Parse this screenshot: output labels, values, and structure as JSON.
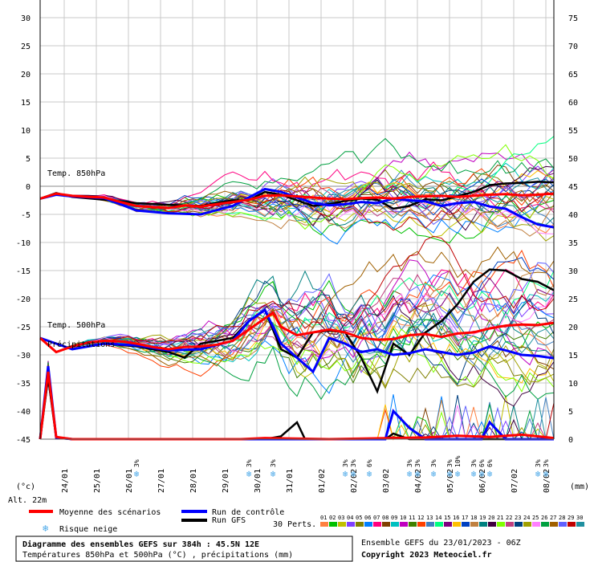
{
  "chart_data": {
    "type": "line",
    "left_axis": {
      "unit_label": "(°c)",
      "ticks": [
        30,
        25,
        20,
        15,
        10,
        5,
        0,
        -5,
        -10,
        -15,
        -20,
        -25,
        -30,
        -35,
        -40,
        -45
      ],
      "range": [
        -45,
        30
      ]
    },
    "right_axis": {
      "unit_label": "(mm)",
      "ticks": [
        75,
        70,
        65,
        60,
        55,
        50,
        45,
        40,
        35,
        30,
        25,
        20,
        15,
        10,
        5,
        0
      ],
      "range": [
        0,
        75
      ]
    },
    "x_ticks": [
      "24/01",
      "25/01",
      "26/01",
      "27/01",
      "28/01",
      "29/01",
      "30/01",
      "31/01",
      "01/02",
      "02/02",
      "03/02",
      "04/02",
      "05/02",
      "06/02",
      "07/02",
      "08/02"
    ],
    "x_hours": [
      18,
      42,
      66,
      90,
      114,
      138,
      162,
      186,
      210,
      234,
      258,
      282,
      306,
      330,
      354,
      378
    ],
    "x_range_hours": [
      0,
      384
    ],
    "grid": true,
    "altitude_label": "Alt. 22m",
    "annotations": [
      "Temp. 850hPa",
      "Temp. 500hPa",
      "Précipitations"
    ],
    "snow_risk": [
      {
        "h": 72,
        "pct": "3%"
      },
      {
        "h": 156,
        "pct": "3%"
      },
      {
        "h": 174,
        "pct": "3%"
      },
      {
        "h": 228,
        "pct": "3%"
      },
      {
        "h": 234,
        "pct": "3%"
      },
      {
        "h": 246,
        "pct": "6%"
      },
      {
        "h": 276,
        "pct": "3%"
      },
      {
        "h": 282,
        "pct": "3%"
      },
      {
        "h": 294,
        "pct": "3%"
      },
      {
        "h": 306,
        "pct": "3%"
      },
      {
        "h": 312,
        "pct": "10%"
      },
      {
        "h": 324,
        "pct": "3%"
      },
      {
        "h": 330,
        "pct": "6%"
      },
      {
        "h": 336,
        "pct": "6%"
      },
      {
        "h": 372,
        "pct": "3%"
      },
      {
        "h": 378,
        "pct": "3%"
      }
    ],
    "series": [
      {
        "name": "Moyenne des scénarios",
        "color": "#ff0000",
        "t850": [
          [
            0,
            -2.2
          ],
          [
            12,
            -1.3
          ],
          [
            24,
            -1.7
          ],
          [
            36,
            -1.9
          ],
          [
            48,
            -2.0
          ],
          [
            60,
            -2.8
          ],
          [
            72,
            -3.5
          ],
          [
            84,
            -3.7
          ],
          [
            96,
            -3.9
          ],
          [
            108,
            -3.4
          ],
          [
            120,
            -3.6
          ],
          [
            132,
            -3.2
          ],
          [
            144,
            -2.8
          ],
          [
            156,
            -2.4
          ],
          [
            168,
            -1.7
          ],
          [
            180,
            -1.6
          ],
          [
            192,
            -1.8
          ],
          [
            204,
            -2.0
          ],
          [
            216,
            -2.2
          ],
          [
            228,
            -2.3
          ],
          [
            240,
            -2.1
          ],
          [
            252,
            -2.0
          ],
          [
            264,
            -2.2
          ],
          [
            276,
            -1.9
          ],
          [
            288,
            -1.8
          ],
          [
            300,
            -1.7
          ],
          [
            312,
            -1.9
          ],
          [
            324,
            -1.7
          ],
          [
            336,
            -1.5
          ],
          [
            348,
            -1.4
          ],
          [
            360,
            -1.6
          ],
          [
            372,
            -1.5
          ],
          [
            384,
            -1.3
          ]
        ],
        "t500": [
          [
            0,
            -27
          ],
          [
            12,
            -29.5
          ],
          [
            24,
            -28.5
          ],
          [
            36,
            -27.8
          ],
          [
            48,
            -27.5
          ],
          [
            60,
            -27.6
          ],
          [
            72,
            -28
          ],
          [
            84,
            -28.6
          ],
          [
            96,
            -29
          ],
          [
            108,
            -28.6
          ],
          [
            120,
            -28.5
          ],
          [
            132,
            -28.2
          ],
          [
            144,
            -27.5
          ],
          [
            156,
            -25.5
          ],
          [
            168,
            -23.5
          ],
          [
            174,
            -22.5
          ],
          [
            180,
            -25
          ],
          [
            192,
            -26.5
          ],
          [
            204,
            -26
          ],
          [
            216,
            -25.5
          ],
          [
            228,
            -26
          ],
          [
            240,
            -27
          ],
          [
            252,
            -27.3
          ],
          [
            264,
            -27.2
          ],
          [
            276,
            -26.5
          ],
          [
            288,
            -26.3
          ],
          [
            300,
            -26.8
          ],
          [
            312,
            -26.2
          ],
          [
            324,
            -26
          ],
          [
            336,
            -25.3
          ],
          [
            348,
            -24.8
          ],
          [
            360,
            -24.6
          ],
          [
            372,
            -24.7
          ],
          [
            384,
            -24.3
          ]
        ],
        "precip": [
          [
            0,
            0
          ],
          [
            6,
            12
          ],
          [
            12,
            0.4
          ],
          [
            24,
            0
          ],
          [
            96,
            0
          ],
          [
            150,
            0
          ],
          [
            168,
            0.2
          ],
          [
            216,
            0
          ],
          [
            288,
            0.3
          ],
          [
            312,
            0.6
          ],
          [
            336,
            0.4
          ],
          [
            360,
            0.8
          ],
          [
            384,
            0.2
          ]
        ]
      },
      {
        "name": "Run de contrôle",
        "color": "#0000ff",
        "t850": [
          [
            0,
            -2.2
          ],
          [
            12,
            -1.5
          ],
          [
            24,
            -1.8
          ],
          [
            48,
            -2.1
          ],
          [
            72,
            -4.3
          ],
          [
            96,
            -4.8
          ],
          [
            120,
            -5.0
          ],
          [
            144,
            -3.5
          ],
          [
            156,
            -2.0
          ],
          [
            168,
            -0.5
          ],
          [
            180,
            -1.0
          ],
          [
            192,
            -2.0
          ],
          [
            204,
            -3.0
          ],
          [
            216,
            -3.4
          ],
          [
            228,
            -3.2
          ],
          [
            240,
            -2.8
          ],
          [
            252,
            -3.0
          ],
          [
            264,
            -2.2
          ],
          [
            276,
            -2.5
          ],
          [
            288,
            -2.7
          ],
          [
            300,
            -3.5
          ],
          [
            312,
            -3.0
          ],
          [
            324,
            -2.8
          ],
          [
            336,
            -3.6
          ],
          [
            348,
            -4.0
          ],
          [
            360,
            -5.5
          ],
          [
            372,
            -6.8
          ],
          [
            384,
            -7.3
          ]
        ],
        "t500": [
          [
            0,
            -27
          ],
          [
            24,
            -29
          ],
          [
            48,
            -28
          ],
          [
            72,
            -28.3
          ],
          [
            96,
            -29.2
          ],
          [
            120,
            -29
          ],
          [
            144,
            -27.5
          ],
          [
            156,
            -24
          ],
          [
            168,
            -22
          ],
          [
            180,
            -28
          ],
          [
            192,
            -30.5
          ],
          [
            204,
            -33
          ],
          [
            216,
            -27
          ],
          [
            228,
            -28
          ],
          [
            240,
            -29.5
          ],
          [
            252,
            -29
          ],
          [
            264,
            -30
          ],
          [
            276,
            -29.7
          ],
          [
            288,
            -29
          ],
          [
            300,
            -29.5
          ],
          [
            312,
            -30
          ],
          [
            324,
            -29.6
          ],
          [
            336,
            -28.5
          ],
          [
            348,
            -29.2
          ],
          [
            360,
            -30
          ],
          [
            372,
            -30.2
          ],
          [
            384,
            -30.6
          ]
        ],
        "precip": [
          [
            0,
            0
          ],
          [
            6,
            13
          ],
          [
            12,
            0.3
          ],
          [
            24,
            0
          ],
          [
            132,
            0
          ],
          [
            200,
            0
          ],
          [
            258,
            0
          ],
          [
            264,
            5
          ],
          [
            276,
            2
          ],
          [
            288,
            0
          ],
          [
            330,
            0
          ],
          [
            336,
            3
          ],
          [
            348,
            0
          ],
          [
            384,
            0
          ]
        ]
      },
      {
        "name": "Run GFS",
        "color": "#000000",
        "t850": [
          [
            0,
            -2.2
          ],
          [
            12,
            -1.2
          ],
          [
            24,
            -1.9
          ],
          [
            48,
            -2.4
          ],
          [
            72,
            -3.0
          ],
          [
            96,
            -3.3
          ],
          [
            120,
            -3.5
          ],
          [
            144,
            -2.5
          ],
          [
            156,
            -2.5
          ],
          [
            168,
            -1.0
          ],
          [
            180,
            -1.5
          ],
          [
            192,
            -2.5
          ],
          [
            204,
            -3.5
          ],
          [
            216,
            -3.2
          ],
          [
            228,
            -2.6
          ],
          [
            240,
            -2.2
          ],
          [
            252,
            -2.4
          ],
          [
            264,
            -4.0
          ],
          [
            276,
            -3.5
          ],
          [
            288,
            -2.3
          ],
          [
            300,
            -2.5
          ],
          [
            312,
            -1.8
          ],
          [
            324,
            -1.0
          ],
          [
            336,
            0.2
          ],
          [
            348,
            0.5
          ],
          [
            360,
            0.6
          ],
          [
            372,
            0.8
          ],
          [
            384,
            0.7
          ]
        ],
        "t500": [
          [
            0,
            -27
          ],
          [
            24,
            -29
          ],
          [
            48,
            -28
          ],
          [
            72,
            -28.5
          ],
          [
            96,
            -29.5
          ],
          [
            108,
            -30.5
          ],
          [
            120,
            -28
          ],
          [
            144,
            -27
          ],
          [
            156,
            -24
          ],
          [
            168,
            -22
          ],
          [
            180,
            -29
          ],
          [
            192,
            -30.5
          ],
          [
            204,
            -26
          ],
          [
            216,
            -25.7
          ],
          [
            228,
            -26
          ],
          [
            240,
            -30.5
          ],
          [
            252,
            -36.5
          ],
          [
            264,
            -28
          ],
          [
            276,
            -30
          ],
          [
            288,
            -26
          ],
          [
            300,
            -24
          ],
          [
            312,
            -21
          ],
          [
            324,
            -17
          ],
          [
            336,
            -14.8
          ],
          [
            348,
            -15
          ],
          [
            360,
            -16.5
          ],
          [
            372,
            -17
          ],
          [
            384,
            -18.5
          ]
        ],
        "precip": [
          [
            0,
            0
          ],
          [
            6,
            11
          ],
          [
            12,
            0.2
          ],
          [
            24,
            0
          ],
          [
            168,
            0
          ],
          [
            180,
            0.5
          ],
          [
            192,
            3
          ],
          [
            198,
            0
          ],
          [
            240,
            0
          ],
          [
            258,
            0
          ],
          [
            264,
            1
          ],
          [
            276,
            0
          ],
          [
            384,
            0
          ]
        ]
      }
    ],
    "members_label": "30 Perts.",
    "members": [
      "01",
      "02",
      "03",
      "04",
      "05",
      "06",
      "07",
      "08",
      "09",
      "10",
      "11",
      "12",
      "13",
      "14",
      "15",
      "16",
      "17",
      "18",
      "19",
      "20",
      "21",
      "22",
      "23",
      "24",
      "25",
      "26",
      "27",
      "28",
      "29",
      "30"
    ],
    "member_colors": [
      "#ff8040",
      "#00c000",
      "#c0c000",
      "#8040ff",
      "#808000",
      "#0080ff",
      "#ff0080",
      "#804000",
      "#00c0c0",
      "#c000c0",
      "#408000",
      "#ff4000",
      "#4080c0",
      "#00ff80",
      "#800080",
      "#ffc000",
      "#0040c0",
      "#c08040",
      "#008080",
      "#400040",
      "#80ff00",
      "#c04080",
      "#004080",
      "#a0a000",
      "#ff80ff",
      "#00a040",
      "#a06000",
      "#6060ff",
      "#c00000",
      "#2090a0"
    ]
  },
  "legend": {
    "mean": "Moyenne des scénarios",
    "control": "Run de contrôle",
    "gfs": "Run GFS",
    "snow": "Risque neige"
  },
  "footer": {
    "title": "Diagramme des ensembles GEFS sur 384h : 45.5N 12E",
    "subtitle": "Températures 850hPa et 500hPa (°C) , précipitations (mm)",
    "run_info": "Ensemble GEFS du 23/01/2023 - 06Z",
    "copyright": "Copyright 2023 Meteociel.fr"
  }
}
